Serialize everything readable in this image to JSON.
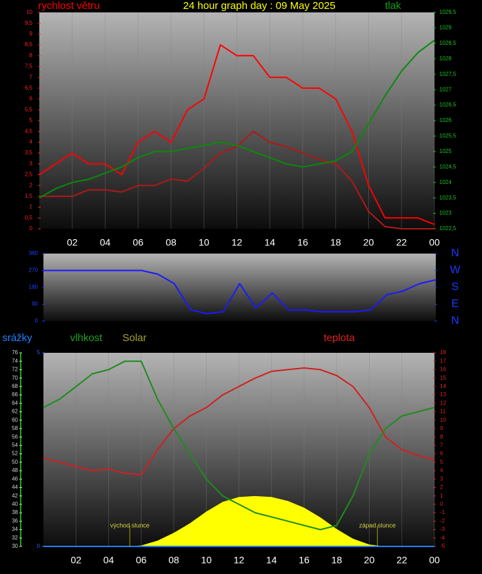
{
  "chart_data": [
    {
      "type": "line",
      "title": "24 hour graph day : 09 May 2025",
      "ylabel": "rychlost větru",
      "y2label": "tlak",
      "ylabel_color": "#ff0000",
      "y2label_color": "#10a010",
      "ytick_color": "#ff2020",
      "y2tick_color": "#20c020",
      "xlim": [
        0,
        24
      ],
      "xticks": [
        {
          "value": 2,
          "label": "02"
        },
        {
          "value": 4,
          "label": "04"
        },
        {
          "value": 6,
          "label": "06"
        },
        {
          "value": 8,
          "label": "08"
        },
        10,
        12,
        14,
        16,
        18,
        20,
        22,
        {
          "value": 24,
          "label": "00"
        }
      ],
      "ylim": [
        0,
        10
      ],
      "yticks": [
        0,
        {
          "value": 0.5,
          "label": "0,5"
        },
        1,
        {
          "value": 1.5,
          "label": "1,5"
        },
        2,
        {
          "value": 2.5,
          "label": "2,5"
        },
        3,
        {
          "value": 3.5,
          "label": "3,5"
        },
        4,
        {
          "value": 4.5,
          "label": "4,5"
        },
        5,
        {
          "value": 5.5,
          "label": "5,5"
        },
        6,
        {
          "value": 6.5,
          "label": "6,5"
        },
        7,
        {
          "value": 7.5,
          "label": "7,5"
        },
        8,
        {
          "value": 8.5,
          "label": "8,5"
        },
        9,
        {
          "value": 9.5,
          "label": "9,5"
        },
        10
      ],
      "y2lim": [
        1022.5,
        1029.5
      ],
      "y2ticks": [
        {
          "value": 1022.5,
          "label": "1022,5"
        },
        1023,
        {
          "value": 1023.5,
          "label": "1023,5"
        },
        1024,
        {
          "value": 1024.5,
          "label": "1024,5"
        },
        1025,
        {
          "value": 1025.5,
          "label": "1025,5"
        },
        1026,
        {
          "value": 1026.5,
          "label": "1026,5"
        },
        1027,
        {
          "value": 1027.5,
          "label": "1027,5"
        },
        1028,
        {
          "value": 1028.5,
          "label": "1028,5"
        },
        1029,
        {
          "value": 1029.5,
          "label": "1029,5"
        }
      ],
      "x": [
        0,
        1,
        2,
        3,
        4,
        5,
        6,
        7,
        8,
        9,
        10,
        11,
        12,
        13,
        14,
        15,
        16,
        17,
        18,
        19,
        20,
        21,
        22,
        23,
        24
      ],
      "series": [
        {
          "color": "#b01818",
          "axis": "y",
          "values": [
            1.5,
            1.5,
            1.5,
            1.8,
            1.8,
            1.7,
            2,
            2,
            2.3,
            2.2,
            2.8,
            3.5,
            3.8,
            4.5,
            4,
            3.8,
            3.5,
            3.2,
            3,
            2.2,
            0.8,
            0.1,
            0,
            0,
            0
          ]
        },
        {
          "color": "#ff0000",
          "axis": "y",
          "values": [
            2.5,
            3,
            3.5,
            3,
            3,
            2.5,
            4,
            4.5,
            4,
            5.5,
            6,
            8.5,
            8,
            8,
            7,
            7,
            6.5,
            6.5,
            6,
            4.5,
            2,
            0.5,
            0.5,
            0.5,
            0.2
          ]
        },
        {
          "color": "#0a8a0a",
          "axis": "y2",
          "values": [
            1023.5,
            1023.8,
            1024,
            1024.1,
            1024.3,
            1024.5,
            1024.8,
            1025,
            1025,
            1025.1,
            1025.2,
            1025.3,
            1025.2,
            1025,
            1024.8,
            1024.6,
            1024.5,
            1024.6,
            1024.7,
            1025,
            1025.9,
            1026.8,
            1027.6,
            1028.2,
            1028.6
          ]
        }
      ]
    },
    {
      "type": "line",
      "ytick_color": "#2040ff",
      "y2tick_color": "#1a3cff",
      "xlim": [
        0,
        24
      ],
      "ylim": [
        0,
        360
      ],
      "yticks": [
        0,
        90,
        180,
        270,
        360
      ],
      "y2lim": [
        0,
        360
      ],
      "y2ticks": [
        {
          "value": 0,
          "label": "N"
        },
        {
          "value": 90,
          "label": "E"
        },
        {
          "value": 180,
          "label": "S"
        },
        {
          "value": 270,
          "label": "W"
        },
        {
          "value": 360,
          "label": "N"
        }
      ],
      "x": [
        0,
        1,
        2,
        3,
        4,
        5,
        6,
        7,
        8,
        9,
        10,
        11,
        12,
        13,
        14,
        15,
        16,
        17,
        18,
        19,
        20,
        21,
        22,
        23,
        24
      ],
      "series": [
        {
          "color": "#1a1aff",
          "axis": "y",
          "values": [
            270,
            270,
            270,
            270,
            270,
            270,
            270,
            250,
            200,
            60,
            40,
            50,
            200,
            70,
            150,
            60,
            60,
            50,
            50,
            50,
            60,
            140,
            160,
            200,
            220
          ]
        }
      ]
    },
    {
      "type": "line",
      "ylabel": "srážky",
      "y2label": "teplota",
      "y3label": "vlhkost",
      "y4label": "Solar",
      "ylabel_color": "#2080ff",
      "y2label_color": "#e02020",
      "y3label_color": "#20a020",
      "y4label_color": "#a8a030",
      "ytick_color": "#2060ff",
      "y2tick_color": "#e02020",
      "y3tick_color": "#d0d0d0",
      "xlim": [
        0,
        24
      ],
      "xticks": [
        {
          "value": 2,
          "label": "02"
        },
        {
          "value": 4,
          "label": "04"
        },
        {
          "value": 6,
          "label": "06"
        },
        {
          "value": 8,
          "label": "08"
        },
        10,
        12,
        14,
        16,
        18,
        20,
        22,
        {
          "value": 24,
          "label": "00"
        }
      ],
      "ylim": [
        0,
        5
      ],
      "yticks": [
        0,
        5
      ],
      "y2lim": [
        -5,
        18
      ],
      "y2ticks": [
        -5,
        -4,
        -3,
        -2,
        -1,
        0,
        1,
        2,
        3,
        4,
        5,
        6,
        7,
        8,
        9,
        10,
        11,
        12,
        13,
        14,
        15,
        16,
        17,
        18
      ],
      "y3lim": [
        30,
        76
      ],
      "y3ticks": [
        30,
        32,
        34,
        36,
        38,
        40,
        42,
        44,
        46,
        48,
        50,
        52,
        54,
        56,
        58,
        60,
        62,
        64,
        66,
        68,
        70,
        72,
        74,
        76
      ],
      "y4lim": [
        0,
        1000
      ],
      "annotations": [
        {
          "text": "východ slunce",
          "x": 5.3
        },
        {
          "text": "západ slunce",
          "x": 20.5
        }
      ],
      "x": [
        0,
        1,
        2,
        3,
        4,
        5,
        6,
        7,
        8,
        9,
        10,
        11,
        12,
        13,
        14,
        15,
        16,
        17,
        18,
        19,
        20,
        21,
        22,
        23,
        24
      ],
      "series": [
        {
          "type": "area",
          "color": "#ffff00",
          "axis": "y4",
          "values": [
            0,
            0,
            0,
            0,
            0,
            0,
            5,
            30,
            70,
            120,
            180,
            230,
            255,
            260,
            255,
            235,
            200,
            150,
            90,
            40,
            10,
            0,
            0,
            0,
            0
          ]
        },
        {
          "color": "#d02020",
          "axis": "y2",
          "values": [
            5.5,
            5,
            4.5,
            4,
            4.2,
            3.7,
            3.5,
            6.5,
            9,
            10.5,
            11.5,
            13,
            14,
            15,
            15.8,
            16,
            16.2,
            16,
            15.3,
            14,
            11.5,
            8,
            6.5,
            5.8,
            5.3
          ]
        },
        {
          "color": "#1e8c1e",
          "axis": "y3",
          "values": [
            63,
            65,
            68,
            71,
            72,
            74,
            74,
            65,
            58,
            52,
            46,
            42,
            40,
            38,
            37,
            36,
            35,
            34,
            35,
            42,
            52,
            58,
            61,
            62,
            63
          ]
        },
        {
          "color": "#2080ff",
          "axis": "y",
          "values": [
            0,
            0,
            0,
            0,
            0,
            0,
            0,
            0,
            0,
            0,
            0,
            0,
            0,
            0,
            0,
            0,
            0,
            0,
            0,
            0,
            0,
            0,
            0,
            0,
            0
          ]
        }
      ]
    }
  ]
}
